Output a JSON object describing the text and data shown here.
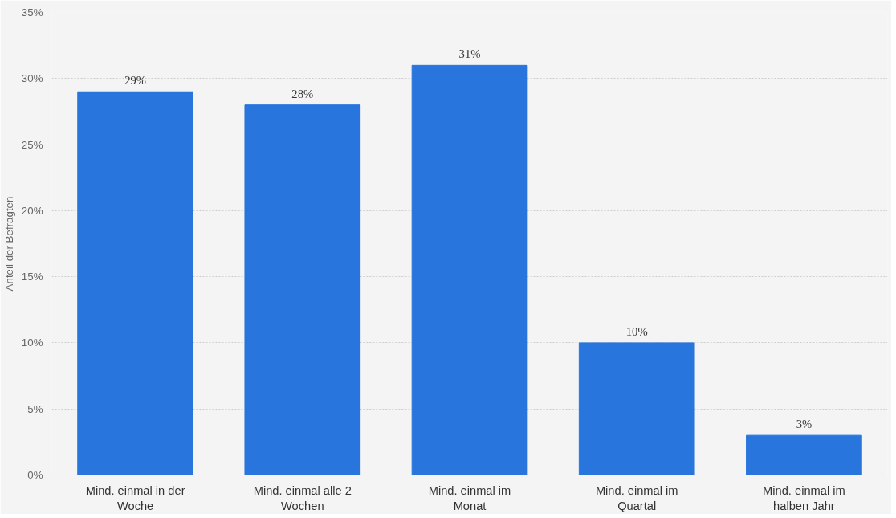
{
  "chart_data": {
    "type": "bar",
    "ylabel": "Anteil der Befragten",
    "categories": [
      "Mind. einmal in der Woche",
      "Mind. einmal alle 2 Wochen",
      "Mind. einmal im Monat",
      "Mind. einmal im Quartal",
      "Mind. einmal im halben Jahr"
    ],
    "values": [
      29,
      28,
      31,
      10,
      3
    ],
    "value_labels": [
      "29%",
      "28%",
      "31%",
      "10%",
      "3%"
    ],
    "color": "#2775dd",
    "ylim": [
      0,
      35
    ],
    "yticks": [
      {
        "value": 0,
        "label": "0%"
      },
      {
        "value": 5,
        "label": "5%"
      },
      {
        "value": 10,
        "label": "10%"
      },
      {
        "value": 15,
        "label": "15%"
      },
      {
        "value": 20,
        "label": "20%"
      },
      {
        "value": 25,
        "label": "25%"
      },
      {
        "value": 30,
        "label": "30%"
      },
      {
        "value": 35,
        "label": "35%"
      }
    ],
    "grid": "y"
  }
}
